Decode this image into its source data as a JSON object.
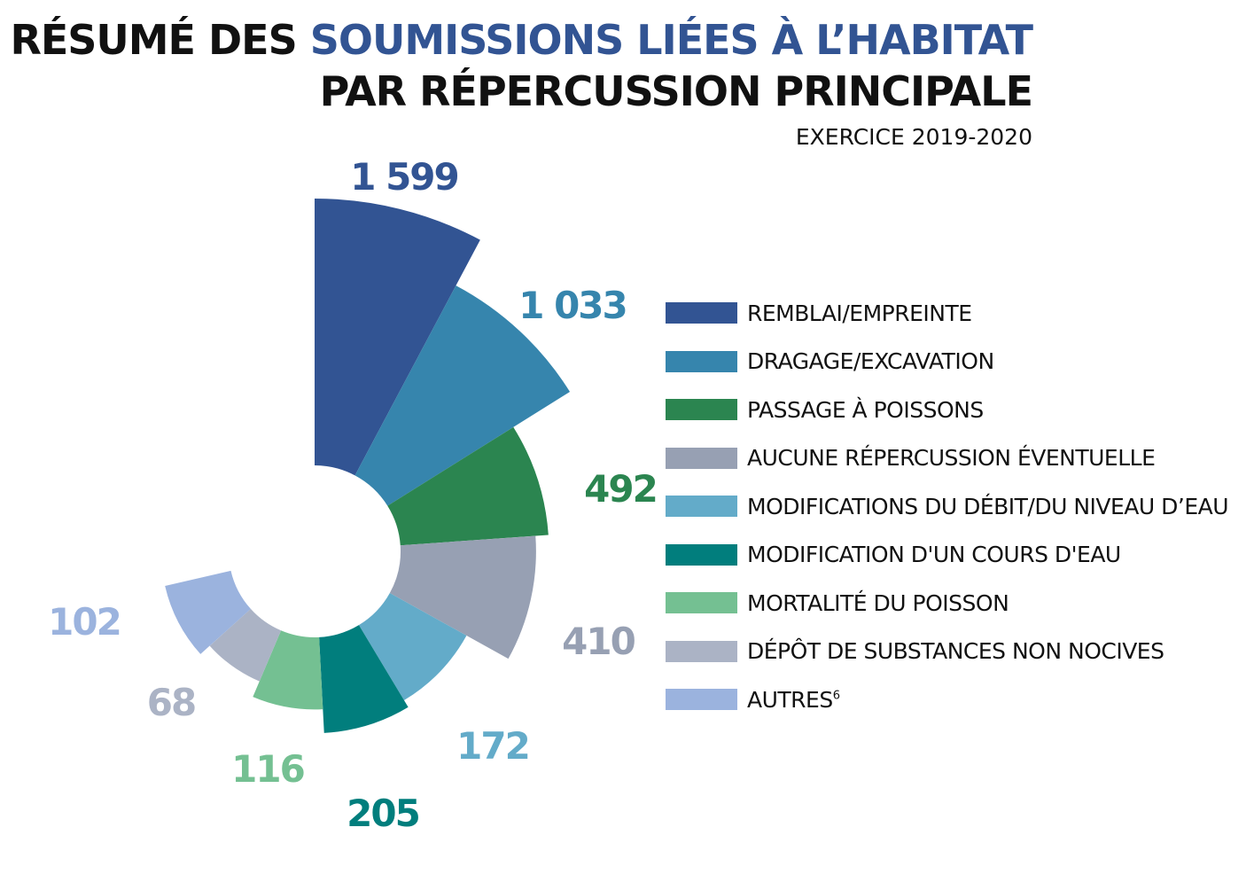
{
  "header": {
    "title_part1": "RÉSUMÉ DES ",
    "title_highlight": "SOUMISSIONS LIÉES À L’HABITAT",
    "title_line2": "PAR RÉPERCUSSION PRINCIPALE",
    "subtitle": "EXERCICE 2019-2020"
  },
  "chart_data": {
    "type": "polar-bar",
    "title": "RÉSUMÉ DES SOUMISSIONS LIÉES À L’HABITAT PAR RÉPERCUSSION PRINCIPALE",
    "subtitle": "EXERCICE 2019-2020",
    "legend_position": "right",
    "categories": [
      "REMBLAI/EMPREINTE",
      "DRAGAGE/EXCAVATION",
      "PASSAGE À POISSONS",
      "AUCUNE RÉPERCUSSION ÉVENTUELLE",
      "MODIFICATIONS DU DÉBIT/DU NIVEAU D’EAU",
      "MODIFICATION D'UN COURS D'EAU",
      "MORTALITÉ DU POISSON",
      "DÉPÔT DE SUBSTANCES NON NOCIVES",
      "AUTRES"
    ],
    "values": [
      1599,
      1033,
      492,
      410,
      172,
      205,
      116,
      68,
      102
    ],
    "value_labels": [
      "1 599",
      "1 033",
      "492",
      "410",
      "172",
      "205",
      "116",
      "68",
      "102"
    ],
    "colors": [
      "#325493",
      "#3685ad",
      "#2b8550",
      "#97a0b3",
      "#63abc9",
      "#017e7d",
      "#74c092",
      "#abb3c5",
      "#9bb3de"
    ],
    "label_colors": [
      "#325493",
      "#3685ad",
      "#2b8550",
      "#97a0b3",
      "#63abc9",
      "#017e7d",
      "#74c092",
      "#abb3c5",
      "#9bb3de"
    ]
  },
  "legend": [
    {
      "label": "REMBLAI/EMPREINTE",
      "color": "#325493"
    },
    {
      "label": "DRAGAGE/EXCAVATION",
      "color": "#3685ad"
    },
    {
      "label": "PASSAGE À POISSONS",
      "color": "#2b8550"
    },
    {
      "label": "AUCUNE RÉPERCUSSION ÉVENTUELLE",
      "color": "#97a0b3"
    },
    {
      "label": "MODIFICATIONS DU DÉBIT/DU NIVEAU D’EAU",
      "color": "#63abc9"
    },
    {
      "label": "MODIFICATION D'UN COURS D'EAU",
      "color": "#017e7d"
    },
    {
      "label": "MORTALITÉ DU POISSON",
      "color": "#74c092"
    },
    {
      "label": "DÉPÔT DE SUBSTANCES NON NOCIVES",
      "color": "#abb3c5"
    },
    {
      "label": "AUTRES",
      "footnote": "6",
      "color": "#9bb3de"
    }
  ]
}
